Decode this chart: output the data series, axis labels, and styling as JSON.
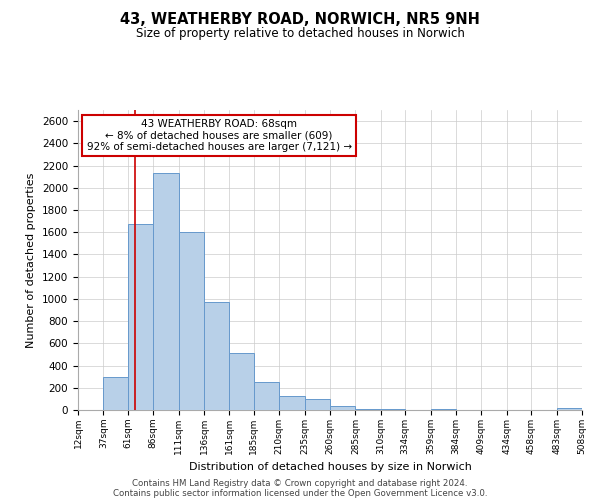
{
  "title": "43, WEATHERBY ROAD, NORWICH, NR5 9NH",
  "subtitle": "Size of property relative to detached houses in Norwich",
  "xlabel": "Distribution of detached houses by size in Norwich",
  "ylabel": "Number of detached properties",
  "bar_color": "#b8d0e8",
  "bar_edge_color": "#6699cc",
  "bg_color": "#ffffff",
  "grid_color": "#cccccc",
  "annotation_box_edge": "#cc0000",
  "vline_color": "#cc0000",
  "annotation_line1": "43 WEATHERBY ROAD: 68sqm",
  "annotation_line2": "← 8% of detached houses are smaller (609)",
  "annotation_line3": "92% of semi-detached houses are larger (7,121) →",
  "bin_edges": [
    12,
    37,
    61,
    86,
    111,
    136,
    161,
    185,
    210,
    235,
    260,
    285,
    310,
    334,
    359,
    384,
    409,
    434,
    458,
    483,
    508
  ],
  "bin_values": [
    0,
    300,
    1670,
    2130,
    1600,
    970,
    510,
    255,
    125,
    100,
    35,
    5,
    5,
    0,
    5,
    0,
    0,
    0,
    0,
    15
  ],
  "vline_x": 68,
  "ylim": [
    0,
    2700
  ],
  "yticks": [
    0,
    200,
    400,
    600,
    800,
    1000,
    1200,
    1400,
    1600,
    1800,
    2000,
    2200,
    2400,
    2600
  ],
  "footnote1": "Contains HM Land Registry data © Crown copyright and database right 2024.",
  "footnote2": "Contains public sector information licensed under the Open Government Licence v3.0."
}
